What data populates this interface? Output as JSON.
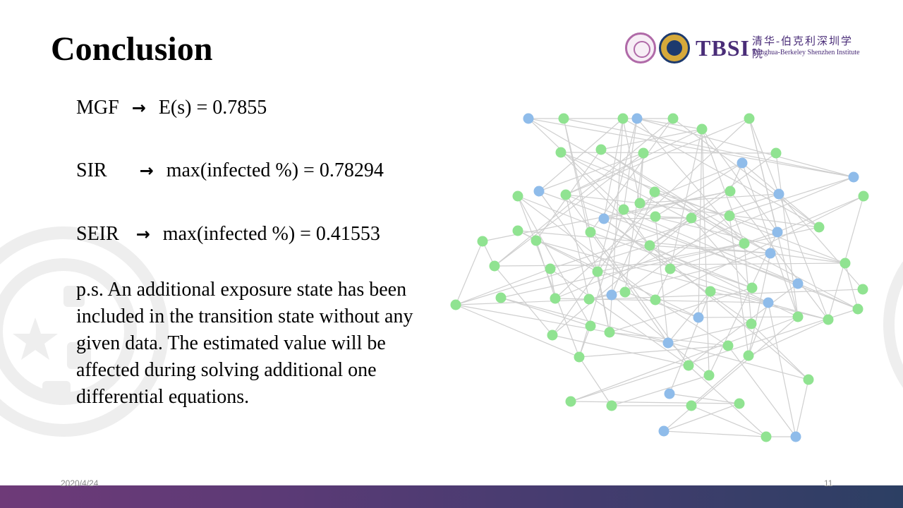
{
  "slide": {
    "title": "Conclusion",
    "date": "2020/4/24",
    "page_number": "11"
  },
  "logo": {
    "tbsi": "TBSI",
    "chinese_name": "清华-伯克利深圳学院",
    "english_name": "Tsinghua-Berkeley Shenzhen Institute"
  },
  "results": [
    {
      "model": "MGF",
      "arrow": "→",
      "expression": "E(s) = 0.7855"
    },
    {
      "model": "SIR",
      "arrow": "→",
      "expression": "max(infected %) = 0.78294"
    },
    {
      "model": "SEIR",
      "arrow": "→",
      "expression": "max(infected %) = 0.41553"
    }
  ],
  "note": "p.s. An additional exposure state has been included in the transition state without any given data. The estimated value will be affected during solving additional one differential equations.",
  "network": {
    "colors": {
      "green": "#90e391",
      "blue": "#8fbcea",
      "edge": "#cfcfcf"
    },
    "nodes": [
      [
        "b",
        129,
        28
      ],
      [
        "g",
        179,
        28
      ],
      [
        "g",
        263,
        28
      ],
      [
        "b",
        283,
        28
      ],
      [
        "g",
        334,
        28
      ],
      [
        "g",
        375,
        43
      ],
      [
        "g",
        442,
        28
      ],
      [
        "g",
        175,
        76
      ],
      [
        "g",
        232,
        72
      ],
      [
        "g",
        292,
        77
      ],
      [
        "b",
        432,
        91
      ],
      [
        "g",
        480,
        77
      ],
      [
        "b",
        590,
        111
      ],
      [
        "b",
        144,
        131
      ],
      [
        "g",
        114,
        138
      ],
      [
        "g",
        182,
        136
      ],
      [
        "g",
        308,
        132
      ],
      [
        "g",
        415,
        131
      ],
      [
        "b",
        484,
        135
      ],
      [
        "g",
        604,
        138
      ],
      [
        "g",
        264,
        157
      ],
      [
        "g",
        287,
        148
      ],
      [
        "b",
        236,
        170
      ],
      [
        "g",
        309,
        167
      ],
      [
        "g",
        360,
        169
      ],
      [
        "g",
        414,
        166
      ],
      [
        "g",
        541,
        182
      ],
      [
        "g",
        114,
        187
      ],
      [
        "g",
        140,
        201
      ],
      [
        "g",
        217,
        189
      ],
      [
        "g",
        301,
        208
      ],
      [
        "b",
        482,
        189
      ],
      [
        "g",
        435,
        205
      ],
      [
        "g",
        64,
        202
      ],
      [
        "g",
        81,
        237
      ],
      [
        "g",
        160,
        241
      ],
      [
        "g",
        227,
        245
      ],
      [
        "g",
        330,
        241
      ],
      [
        "b",
        472,
        219
      ],
      [
        "g",
        578,
        233
      ],
      [
        "g",
        90,
        282
      ],
      [
        "g",
        167,
        283
      ],
      [
        "g",
        215,
        284
      ],
      [
        "b",
        247,
        278
      ],
      [
        "g",
        266,
        274
      ],
      [
        "g",
        309,
        285
      ],
      [
        "g",
        387,
        273
      ],
      [
        "g",
        446,
        268
      ],
      [
        "b",
        511,
        262
      ],
      [
        "g",
        603,
        270
      ],
      [
        "g",
        26,
        292
      ],
      [
        "g",
        596,
        298
      ],
      [
        "b",
        370,
        310
      ],
      [
        "b",
        469,
        289
      ],
      [
        "g",
        511,
        309
      ],
      [
        "g",
        554,
        313
      ],
      [
        "g",
        217,
        322
      ],
      [
        "g",
        244,
        331
      ],
      [
        "g",
        163,
        335
      ],
      [
        "b",
        327,
        346
      ],
      [
        "g",
        445,
        319
      ],
      [
        "g",
        412,
        350
      ],
      [
        "g",
        441,
        364
      ],
      [
        "g",
        201,
        366
      ],
      [
        "g",
        356,
        378
      ],
      [
        "g",
        385,
        392
      ],
      [
        "g",
        526,
        398
      ],
      [
        "b",
        329,
        418
      ],
      [
        "g",
        189,
        429
      ],
      [
        "g",
        247,
        435
      ],
      [
        "g",
        360,
        435
      ],
      [
        "g",
        428,
        432
      ],
      [
        "b",
        321,
        471
      ],
      [
        "g",
        466,
        479
      ],
      [
        "b",
        508,
        479
      ]
    ],
    "edges": [
      [
        0,
        4
      ],
      [
        0,
        12
      ],
      [
        0,
        20
      ],
      [
        0,
        32
      ],
      [
        1,
        12
      ],
      [
        1,
        29
      ],
      [
        1,
        57
      ],
      [
        2,
        13
      ],
      [
        2,
        21
      ],
      [
        2,
        22
      ],
      [
        2,
        26
      ],
      [
        2,
        57
      ],
      [
        3,
        12
      ],
      [
        3,
        20
      ],
      [
        3,
        32
      ],
      [
        3,
        36
      ],
      [
        4,
        26
      ],
      [
        4,
        29
      ],
      [
        4,
        34
      ],
      [
        5,
        3
      ],
      [
        5,
        8
      ],
      [
        5,
        15
      ],
      [
        5,
        31
      ],
      [
        5,
        32
      ],
      [
        5,
        37
      ],
      [
        5,
        52
      ],
      [
        5,
        65
      ],
      [
        6,
        15
      ],
      [
        6,
        31
      ],
      [
        6,
        41
      ],
      [
        6,
        54
      ],
      [
        6,
        55
      ],
      [
        7,
        11
      ],
      [
        7,
        30
      ],
      [
        7,
        39
      ],
      [
        7,
        51
      ],
      [
        8,
        28
      ],
      [
        8,
        32
      ],
      [
        8,
        38
      ],
      [
        9,
        13
      ],
      [
        9,
        21
      ],
      [
        9,
        34
      ],
      [
        9,
        44
      ],
      [
        10,
        17
      ],
      [
        10,
        21
      ],
      [
        10,
        23
      ],
      [
        10,
        26
      ],
      [
        10,
        54
      ],
      [
        11,
        30
      ],
      [
        11,
        54
      ],
      [
        12,
        25
      ],
      [
        12,
        41
      ],
      [
        13,
        36
      ],
      [
        13,
        48
      ],
      [
        14,
        45
      ],
      [
        14,
        47
      ],
      [
        14,
        56
      ],
      [
        14,
        63
      ],
      [
        15,
        21
      ],
      [
        15,
        42
      ],
      [
        15,
        51
      ],
      [
        15,
        64
      ],
      [
        16,
        31
      ],
      [
        16,
        38
      ],
      [
        16,
        43
      ],
      [
        16,
        58
      ],
      [
        17,
        22
      ],
      [
        17,
        24
      ],
      [
        17,
        33
      ],
      [
        17,
        55
      ],
      [
        18,
        21
      ],
      [
        18,
        35
      ],
      [
        18,
        49
      ],
      [
        19,
        31
      ],
      [
        19,
        45
      ],
      [
        19,
        55
      ],
      [
        20,
        30
      ],
      [
        20,
        39
      ],
      [
        20,
        51
      ],
      [
        20,
        63
      ],
      [
        21,
        26
      ],
      [
        22,
        24
      ],
      [
        22,
        37
      ],
      [
        22,
        60
      ],
      [
        23,
        24
      ],
      [
        23,
        59
      ],
      [
        24,
        30
      ],
      [
        24,
        47
      ],
      [
        24,
        58
      ],
      [
        25,
        44
      ],
      [
        25,
        62
      ],
      [
        26,
        40
      ],
      [
        27,
        36
      ],
      [
        27,
        38
      ],
      [
        27,
        52
      ],
      [
        28,
        41
      ],
      [
        28,
        55
      ],
      [
        29,
        47
      ],
      [
        29,
        59
      ],
      [
        30,
        38
      ],
      [
        30,
        50
      ],
      [
        30,
        54
      ],
      [
        30,
        66
      ],
      [
        31,
        37
      ],
      [
        31,
        65
      ],
      [
        32,
        36
      ],
      [
        32,
        60
      ],
      [
        33,
        34
      ],
      [
        33,
        50
      ],
      [
        34,
        39
      ],
      [
        34,
        58
      ],
      [
        35,
        41
      ],
      [
        35,
        50
      ],
      [
        35,
        64
      ],
      [
        36,
        57
      ],
      [
        37,
        45
      ],
      [
        37,
        53
      ],
      [
        38,
        39
      ],
      [
        38,
        42
      ],
      [
        38,
        62
      ],
      [
        39,
        51
      ],
      [
        40,
        56
      ],
      [
        40,
        66
      ],
      [
        41,
        53
      ],
      [
        42,
        43
      ],
      [
        43,
        65
      ],
      [
        44,
        52
      ],
      [
        45,
        61
      ],
      [
        46,
        55
      ],
      [
        46,
        59
      ],
      [
        46,
        67
      ],
      [
        47,
        57
      ],
      [
        48,
        64
      ],
      [
        49,
        50
      ],
      [
        50,
        59
      ],
      [
        50,
        63
      ],
      [
        51,
        68
      ],
      [
        52,
        54
      ],
      [
        53,
        62
      ],
      [
        53,
        74
      ],
      [
        54,
        68
      ],
      [
        54,
        72
      ],
      [
        55,
        62
      ],
      [
        56,
        63
      ],
      [
        57,
        61
      ],
      [
        58,
        64
      ],
      [
        59,
        60
      ],
      [
        60,
        66
      ],
      [
        61,
        63
      ],
      [
        61,
        74
      ],
      [
        62,
        70
      ],
      [
        63,
        69
      ],
      [
        64,
        73
      ],
      [
        65,
        69
      ],
      [
        66,
        74
      ],
      [
        67,
        71
      ],
      [
        68,
        71
      ],
      [
        69,
        70
      ],
      [
        70,
        73
      ],
      [
        71,
        72
      ],
      [
        72,
        73
      ],
      [
        73,
        74
      ]
    ]
  }
}
